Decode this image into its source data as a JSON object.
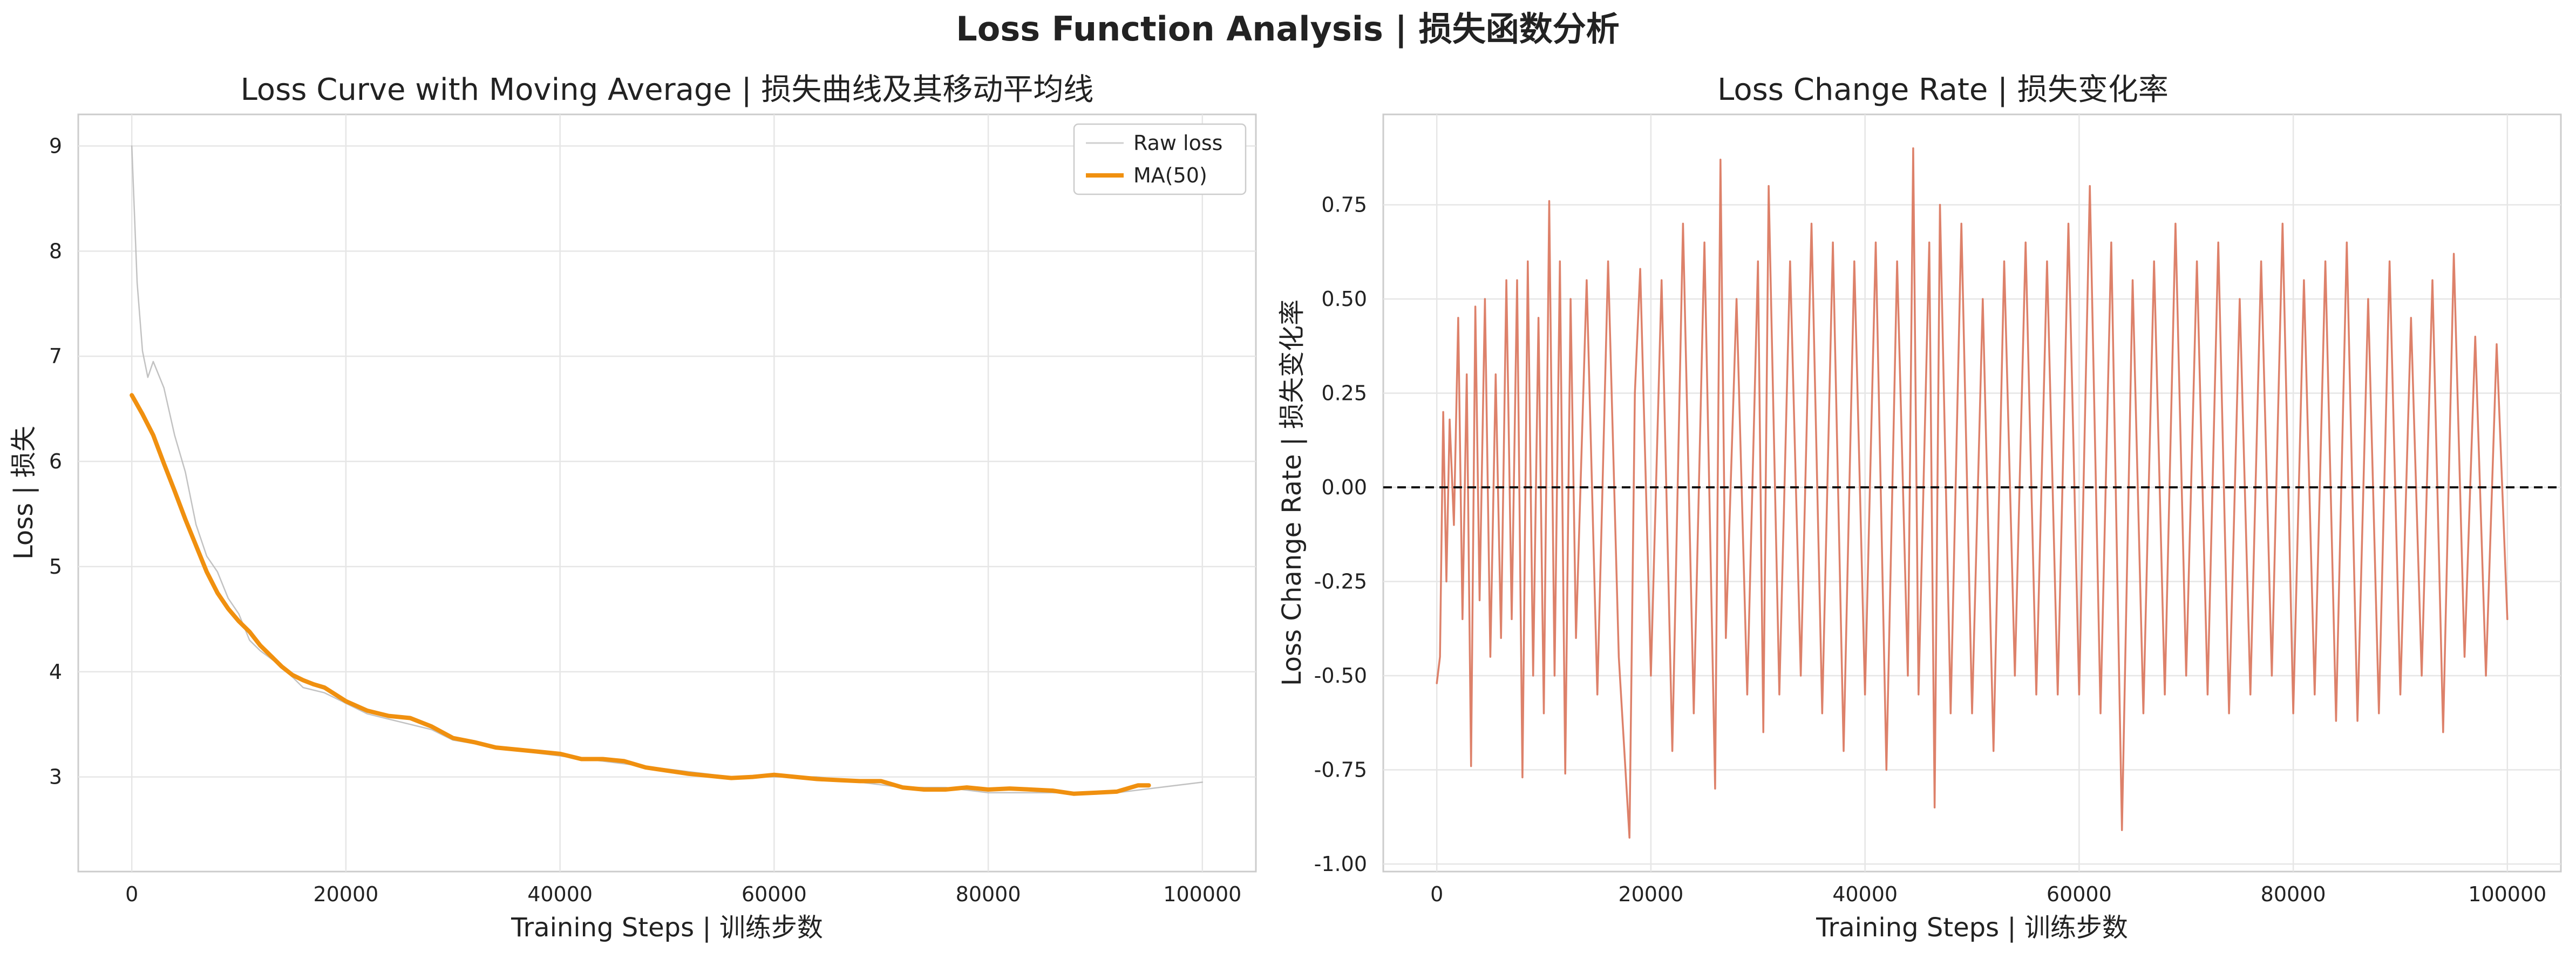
{
  "figure": {
    "title": "Loss Function Analysis | 损失函数分析"
  },
  "chart_data": [
    {
      "type": "line",
      "title": "Loss Curve with Moving Average | 损失曲线及其移动平均线",
      "xlabel": "Training Steps | 训练步数",
      "ylabel": "Loss | 损失",
      "xlim": [
        -5000,
        105000
      ],
      "ylim": [
        2.1,
        9.3
      ],
      "xticks": [
        0,
        20000,
        40000,
        60000,
        80000,
        100000
      ],
      "yticks": [
        3,
        4,
        5,
        6,
        7,
        8,
        9
      ],
      "grid": true,
      "legend": "top-right",
      "series": [
        {
          "name": "Raw loss",
          "color": "#bbbbbb",
          "x": [
            0,
            500,
            1000,
            1500,
            2000,
            3000,
            4000,
            5000,
            6000,
            7000,
            8000,
            9000,
            10000,
            11000,
            12000,
            14000,
            16000,
            18000,
            20000,
            22000,
            24000,
            26000,
            28000,
            30000,
            33000,
            36000,
            40000,
            44000,
            48000,
            52000,
            56000,
            60000,
            64000,
            68000,
            72000,
            76000,
            80000,
            84000,
            88000,
            92000,
            96000,
            100000
          ],
          "values": [
            9.0,
            7.7,
            7.05,
            6.8,
            6.95,
            6.7,
            6.25,
            5.9,
            5.4,
            5.1,
            4.95,
            4.7,
            4.55,
            4.3,
            4.2,
            4.05,
            3.85,
            3.8,
            3.7,
            3.6,
            3.55,
            3.5,
            3.45,
            3.35,
            3.3,
            3.25,
            3.2,
            3.15,
            3.1,
            3.05,
            3.0,
            3.0,
            3.0,
            2.95,
            2.9,
            2.9,
            2.85,
            2.85,
            2.85,
            2.85,
            2.9,
            2.95
          ]
        },
        {
          "name": "MA(50)",
          "color": "#f0900f",
          "x": [
            0,
            1000,
            2000,
            3000,
            4000,
            5000,
            6000,
            7000,
            8000,
            9000,
            10000,
            11000,
            12000,
            13000,
            14000,
            15000,
            16000,
            17000,
            18000,
            20000,
            22000,
            24000,
            26000,
            28000,
            30000,
            32000,
            34000,
            36000,
            38000,
            40000,
            42000,
            44000,
            46000,
            48000,
            50000,
            52000,
            54000,
            56000,
            58000,
            60000,
            62000,
            64000,
            66000,
            68000,
            70000,
            72000,
            74000,
            76000,
            78000,
            80000,
            82000,
            84000,
            86000,
            88000,
            90000,
            92000,
            94000,
            95000
          ],
          "values": [
            6.63,
            6.45,
            6.25,
            5.98,
            5.72,
            5.45,
            5.2,
            4.95,
            4.75,
            4.6,
            4.48,
            4.38,
            4.25,
            4.15,
            4.05,
            3.97,
            3.92,
            3.88,
            3.85,
            3.72,
            3.63,
            3.58,
            3.56,
            3.48,
            3.37,
            3.33,
            3.28,
            3.26,
            3.24,
            3.22,
            3.17,
            3.17,
            3.15,
            3.09,
            3.06,
            3.03,
            3.01,
            2.99,
            3.0,
            3.02,
            3.0,
            2.98,
            2.97,
            2.96,
            2.96,
            2.9,
            2.88,
            2.88,
            2.9,
            2.88,
            2.89,
            2.88,
            2.87,
            2.84,
            2.85,
            2.86,
            2.92,
            2.92
          ]
        }
      ]
    },
    {
      "type": "line",
      "title": "Loss Change Rate | 损失变化率",
      "xlabel": "Training Steps | 训练步数",
      "ylabel": "Loss Change Rate | 损失变化率",
      "xlim": [
        -5000,
        105000
      ],
      "ylim": [
        -1.02,
        0.99
      ],
      "xticks": [
        0,
        20000,
        40000,
        60000,
        80000,
        100000
      ],
      "yticks": [
        -1.0,
        -0.75,
        -0.5,
        -0.25,
        0.0,
        0.25,
        0.5,
        0.75
      ],
      "grid": true,
      "reference_line": {
        "y": 0.0,
        "style": "dashed",
        "color": "#111111"
      },
      "series": [
        {
          "color": "#d9735a",
          "x": [
            0,
            300,
            600,
            900,
            1200,
            1600,
            2000,
            2400,
            2800,
            3200,
            3600,
            4000,
            4500,
            5000,
            5500,
            6000,
            6500,
            7000,
            7500,
            8000,
            8500,
            9000,
            9500,
            10000,
            10500,
            11000,
            11500,
            12000,
            12500,
            13000,
            14000,
            15000,
            16000,
            17000,
            18000,
            18500,
            19000,
            20000,
            21000,
            22000,
            23000,
            24000,
            25000,
            26000,
            26500,
            27000,
            28000,
            29000,
            30000,
            30500,
            31000,
            32000,
            33000,
            34000,
            35000,
            36000,
            37000,
            38000,
            39000,
            40000,
            41000,
            42000,
            43000,
            44000,
            44500,
            45000,
            46000,
            46500,
            47000,
            48000,
            49000,
            50000,
            51000,
            52000,
            53000,
            54000,
            55000,
            56000,
            57000,
            58000,
            59000,
            60000,
            61000,
            62000,
            63000,
            64000,
            65000,
            66000,
            67000,
            68000,
            69000,
            70000,
            71000,
            72000,
            73000,
            74000,
            75000,
            76000,
            77000,
            78000,
            79000,
            80000,
            81000,
            82000,
            83000,
            84000,
            85000,
            86000,
            87000,
            88000,
            89000,
            90000,
            91000,
            92000,
            93000,
            94000,
            95000,
            96000,
            97000,
            98000,
            99000,
            100000
          ],
          "values": [
            -0.52,
            -0.45,
            0.2,
            -0.25,
            0.18,
            -0.1,
            0.45,
            -0.35,
            0.3,
            -0.74,
            0.48,
            -0.3,
            0.5,
            -0.45,
            0.3,
            -0.4,
            0.55,
            -0.35,
            0.55,
            -0.77,
            0.6,
            -0.5,
            0.45,
            -0.6,
            0.76,
            -0.5,
            0.6,
            -0.76,
            0.5,
            -0.4,
            0.55,
            -0.55,
            0.6,
            -0.45,
            -0.93,
            0.25,
            0.58,
            -0.5,
            0.55,
            -0.7,
            0.7,
            -0.6,
            0.65,
            -0.8,
            0.87,
            -0.4,
            0.5,
            -0.55,
            0.6,
            -0.65,
            0.8,
            -0.55,
            0.6,
            -0.5,
            0.7,
            -0.6,
            0.65,
            -0.7,
            0.6,
            -0.55,
            0.65,
            -0.75,
            0.6,
            -0.5,
            0.9,
            -0.55,
            0.65,
            -0.85,
            0.75,
            -0.6,
            0.7,
            -0.6,
            0.5,
            -0.7,
            0.6,
            -0.5,
            0.65,
            -0.55,
            0.6,
            -0.55,
            0.7,
            -0.55,
            0.8,
            -0.6,
            0.65,
            -0.91,
            0.55,
            -0.6,
            0.6,
            -0.55,
            0.7,
            -0.5,
            0.6,
            -0.55,
            0.65,
            -0.6,
            0.5,
            -0.55,
            0.6,
            -0.5,
            0.7,
            -0.6,
            0.55,
            -0.55,
            0.6,
            -0.62,
            0.65,
            -0.62,
            0.5,
            -0.6,
            0.6,
            -0.55,
            0.45,
            -0.5,
            0.55,
            -0.65,
            0.62,
            -0.45,
            0.4,
            -0.5,
            0.38,
            -0.35
          ]
        }
      ]
    }
  ]
}
